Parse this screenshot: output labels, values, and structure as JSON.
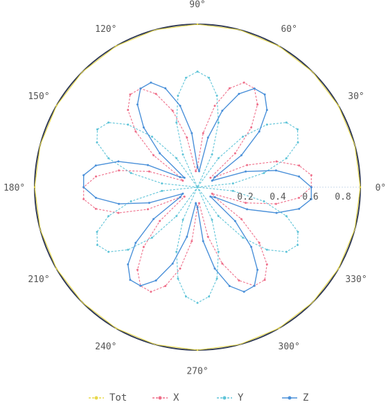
{
  "chart_data": {
    "type": "line",
    "subtype": "polar",
    "angle_unit": "degrees",
    "angle_ticks": [
      0,
      30,
      60,
      90,
      120,
      150,
      180,
      210,
      240,
      270,
      300,
      330
    ],
    "angle_labels": [
      "0°",
      "30°",
      "60°",
      "90°",
      "120°",
      "150°",
      "180°",
      "210°",
      "240°",
      "270°",
      "300°",
      "330°"
    ],
    "radial_ticks": [
      0.2,
      0.4,
      0.6,
      0.8
    ],
    "radial_labels": [
      "0.2",
      "0.4",
      "0.6",
      "0.8"
    ],
    "rlim": [
      0,
      1
    ],
    "legend": {
      "position": "bottom"
    },
    "series": [
      {
        "name": "Tot",
        "color": "#e8d84a",
        "formula": "r = 1",
        "marker": "dot",
        "dashed": true
      },
      {
        "name": "X",
        "color": "#ef6f8a",
        "formula": "r = |cos(3θ − 10°)| · 0.71 (3 petals at 10°, 130°, 250°)",
        "marker": "dot",
        "dashed": true
      },
      {
        "name": "Y",
        "color": "#5fc4d8",
        "formula": "r = |cos(3θ − 90°)| · 0.71 (3 petals at 90°, 210°, 330°)",
        "marker": "dot",
        "dashed": true
      },
      {
        "name": "Z",
        "color": "#4a90d9",
        "formula": "r = |cos(3θ − 170°)| · 0.71 (3 petals at 50°, 170°, 290°)",
        "marker": "dot",
        "dashed": false
      }
    ]
  }
}
